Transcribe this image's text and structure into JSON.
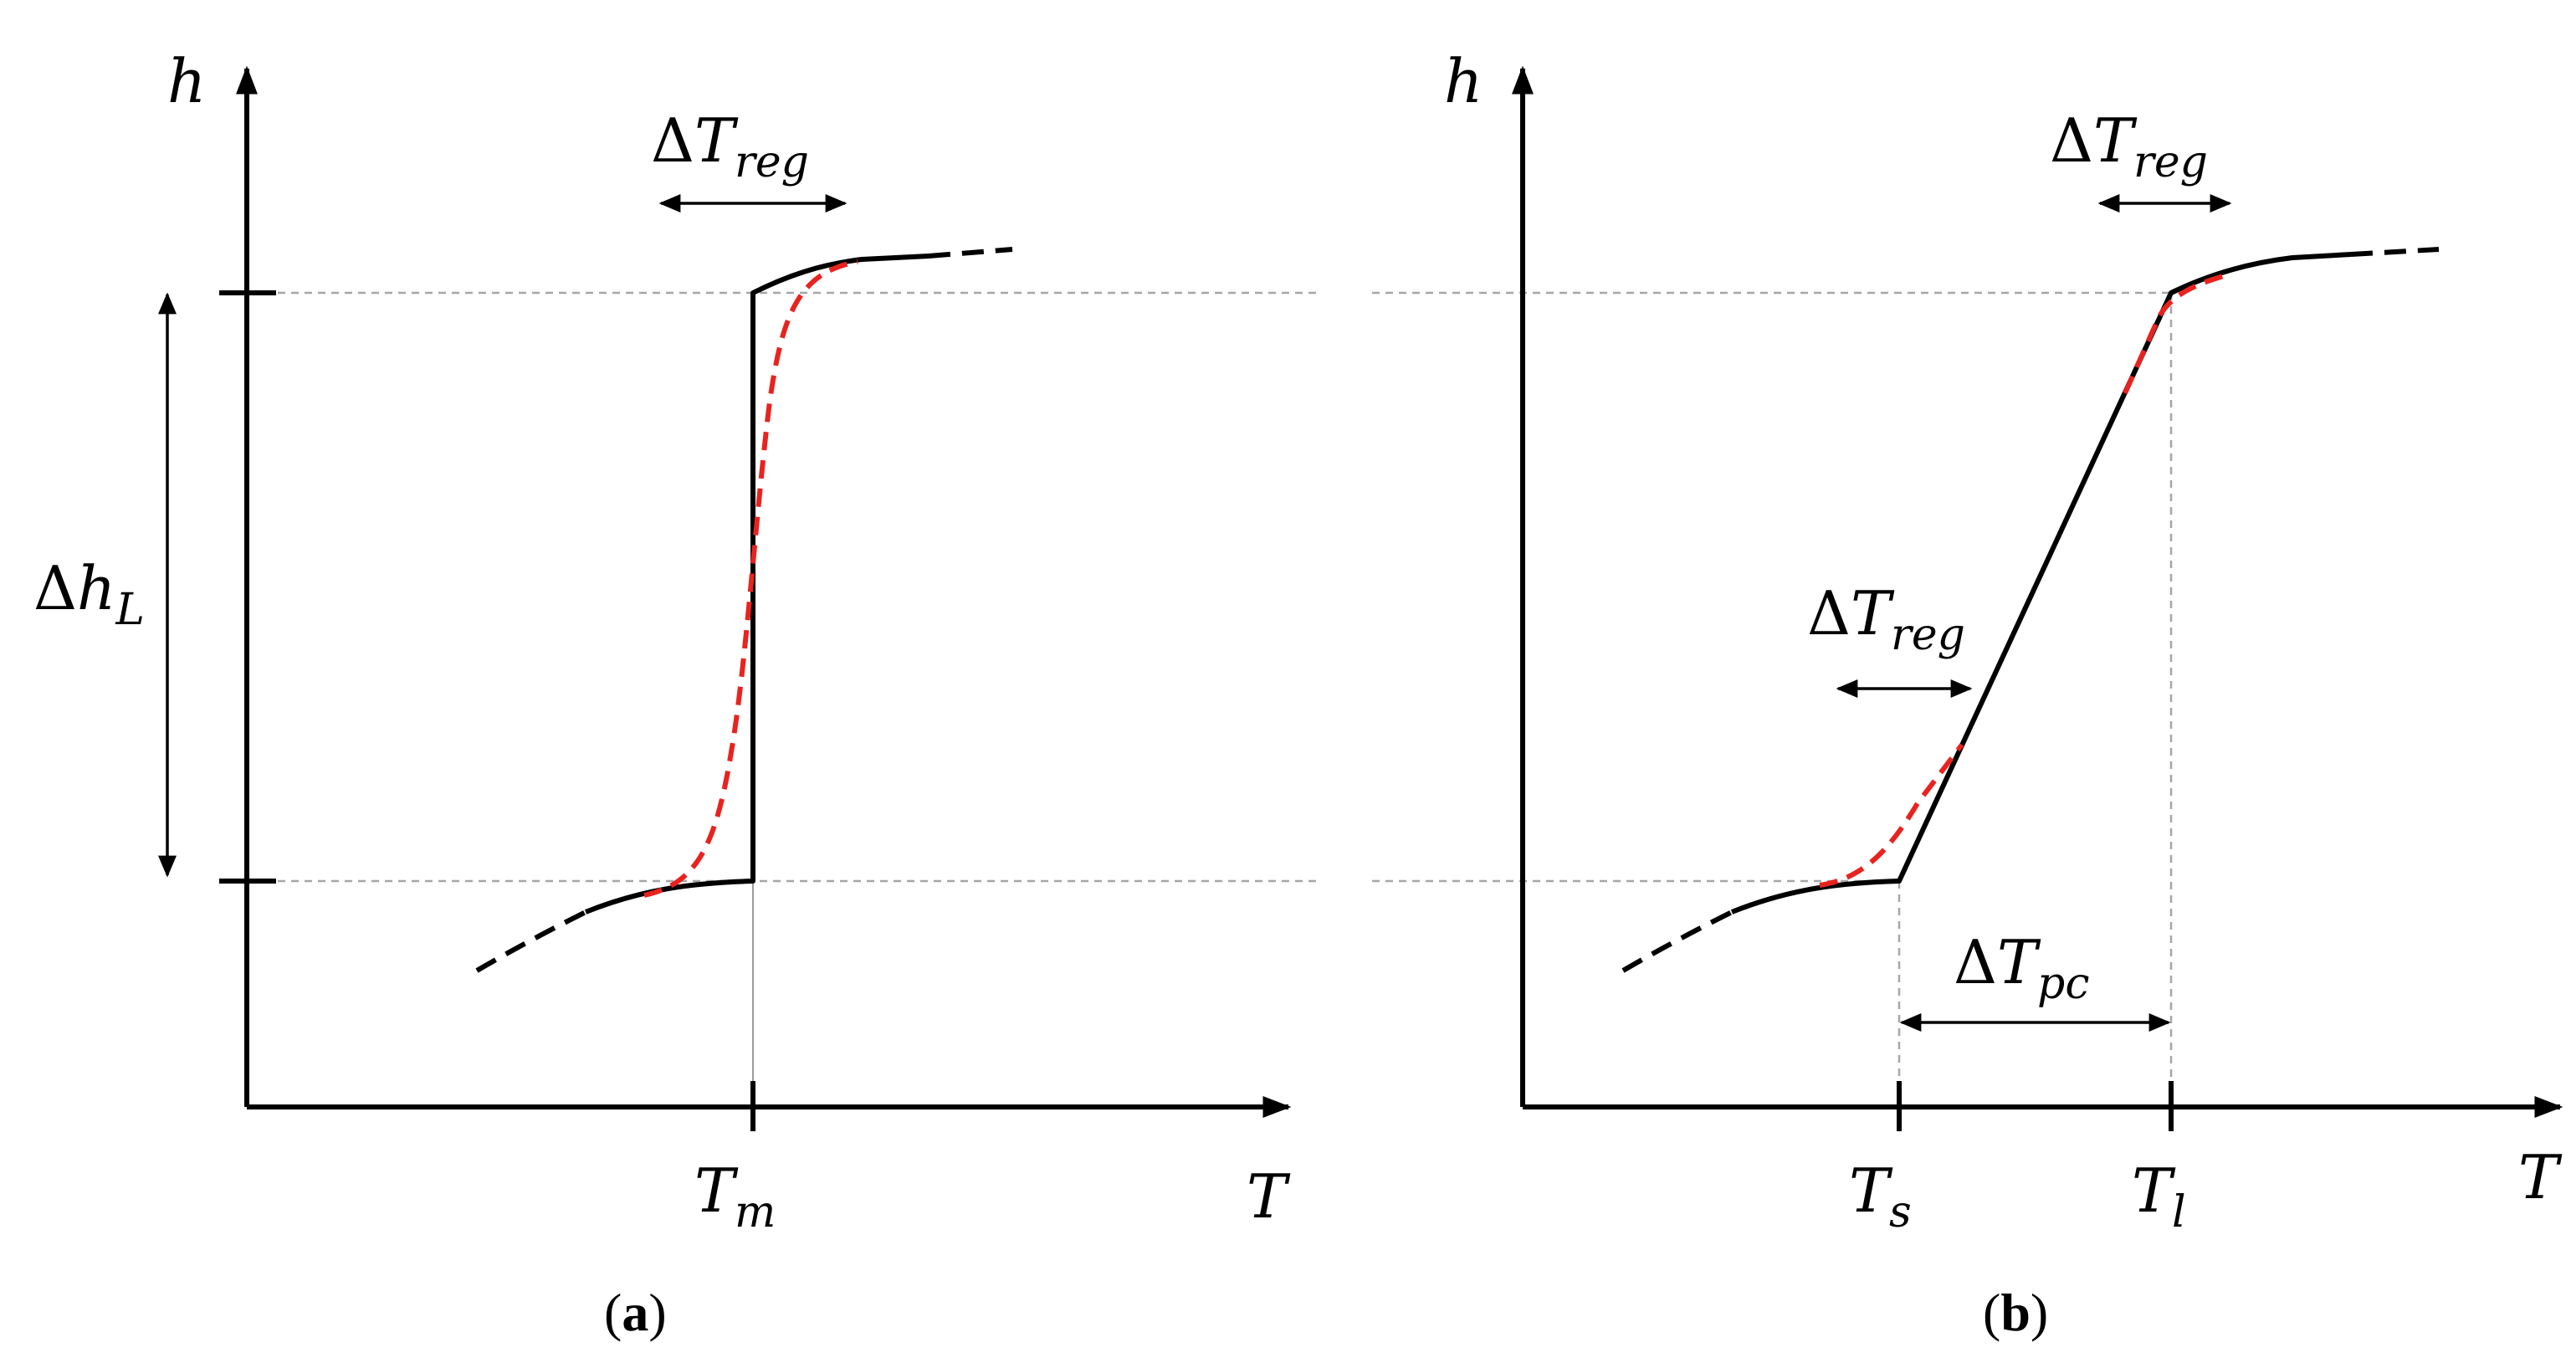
{
  "panel_a": {
    "y_axis_label": "h",
    "x_axis_label": "T",
    "delta_t_reg_label": {
      "delta": "Δ",
      "base": "T",
      "sub": "reg"
    },
    "delta_h_label": {
      "delta": "Δ",
      "base": "h",
      "sub": "L"
    },
    "tm_label": {
      "base": "T",
      "sub": "m"
    },
    "caption": {
      "open": "(",
      "letter": "a",
      "close": ")"
    }
  },
  "panel_b": {
    "y_axis_label": "h",
    "x_axis_label": "T",
    "delta_t_reg_top_label": {
      "delta": "Δ",
      "base": "T",
      "sub": "reg"
    },
    "delta_t_reg_mid_label": {
      "delta": "Δ",
      "base": "T",
      "sub": "reg"
    },
    "delta_t_pc_label": {
      "delta": "Δ",
      "base": "T",
      "sub": "pc"
    },
    "ts_label": {
      "base": "T",
      "sub": "s"
    },
    "tl_label": {
      "base": "T",
      "sub": "l"
    },
    "caption": {
      "open": "(",
      "letter": "b",
      "close": ")"
    }
  },
  "colors": {
    "axis": "#000000",
    "curve": "#000000",
    "regularized_curve": "#e8231f",
    "guide_line": "#a6a6a6"
  }
}
